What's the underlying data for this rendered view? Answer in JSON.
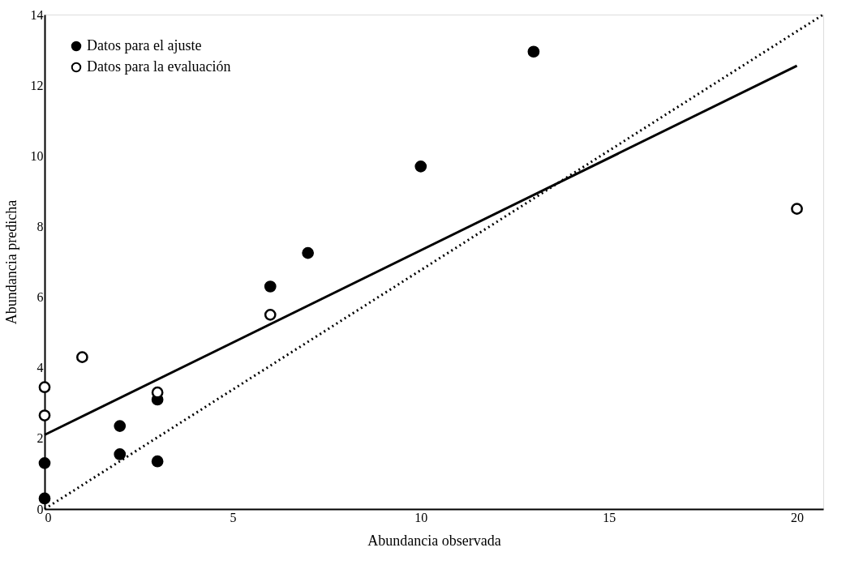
{
  "chart_data": {
    "type": "scatter",
    "xlabel": "Abundancia observada",
    "ylabel": "Abundancia predicha",
    "xlim": [
      0,
      20.7
    ],
    "ylim": [
      0,
      14
    ],
    "xticks": [
      0,
      5,
      10,
      15,
      20
    ],
    "yticks": [
      0,
      2,
      4,
      6,
      8,
      10,
      12,
      14
    ],
    "grid": false,
    "legend": "top left",
    "marker": "circle",
    "series": [
      {
        "name": "Datos para el ajuste",
        "color": "#000000",
        "x": [
          0,
          0,
          2,
          2,
          3,
          3,
          6,
          7,
          10,
          13
        ],
        "values": [
          0.3,
          1.3,
          1.55,
          2.35,
          1.35,
          3.1,
          6.3,
          7.25,
          9.7,
          12.95
        ]
      },
      {
        "name": "Datos para la evaluación",
        "color": "#ffffff",
        "x": [
          0,
          0,
          1,
          3,
          6,
          20
        ],
        "values": [
          2.65,
          3.45,
          4.3,
          3.3,
          5.5,
          8.5
        ]
      },
      {
        "type": "line",
        "color": "#000000",
        "marker": "none",
        "line_style": "solid",
        "x": [
          0,
          20
        ],
        "values": [
          2.1,
          12.55
        ]
      },
      {
        "type": "line",
        "color": "#000000",
        "marker": "none",
        "line_style": "dotted",
        "x": [
          0,
          20.7
        ],
        "values": [
          0,
          14
        ]
      }
    ]
  }
}
